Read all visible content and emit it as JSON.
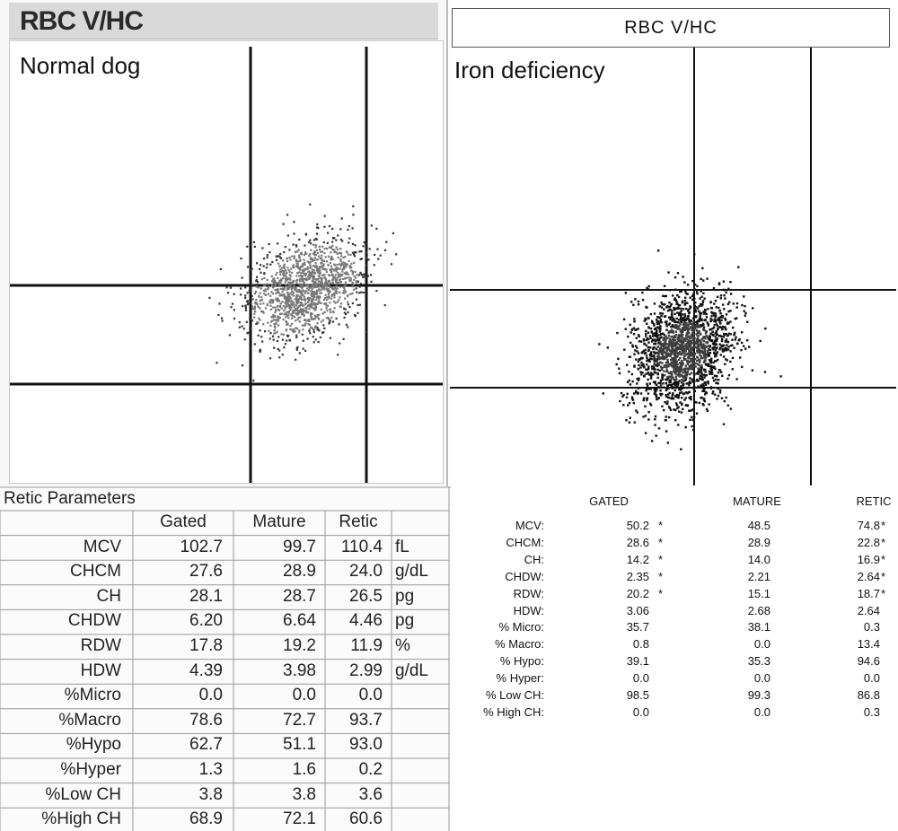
{
  "left": {
    "title": "RBC V/HC",
    "caption": "Normal dog"
  },
  "right": {
    "title": "RBC V/HC",
    "caption": "Iron deficiency"
  },
  "left_table": {
    "title": "Retic Parameters",
    "headers": [
      "Gated",
      "Mature",
      "Retic"
    ],
    "rows": [
      {
        "label": "MCV",
        "gated": "102.7",
        "mature": "99.7",
        "retic": "110.4",
        "unit": "fL"
      },
      {
        "label": "CHCM",
        "gated": "27.6",
        "mature": "28.9",
        "retic": "24.0",
        "unit": "g/dL"
      },
      {
        "label": "CH",
        "gated": "28.1",
        "mature": "28.7",
        "retic": "26.5",
        "unit": "pg"
      },
      {
        "label": "CHDW",
        "gated": "6.20",
        "mature": "6.64",
        "retic": "4.46",
        "unit": "pg"
      },
      {
        "label": "RDW",
        "gated": "17.8",
        "mature": "19.2",
        "retic": "11.9",
        "unit": "%"
      },
      {
        "label": "HDW",
        "gated": "4.39",
        "mature": "3.98",
        "retic": "2.99",
        "unit": "g/dL"
      },
      {
        "label": "%Micro",
        "gated": "0.0",
        "mature": "0.0",
        "retic": "0.0",
        "unit": ""
      },
      {
        "label": "%Macro",
        "gated": "78.6",
        "mature": "72.7",
        "retic": "93.7",
        "unit": ""
      },
      {
        "label": "%Hypo",
        "gated": "62.7",
        "mature": "51.1",
        "retic": "93.0",
        "unit": ""
      },
      {
        "label": "%Hyper",
        "gated": "1.3",
        "mature": "1.6",
        "retic": "0.2",
        "unit": ""
      },
      {
        "label": "%Low CH",
        "gated": "3.8",
        "mature": "3.8",
        "retic": "3.6",
        "unit": ""
      },
      {
        "label": "%High CH",
        "gated": "68.9",
        "mature": "72.1",
        "retic": "60.6",
        "unit": ""
      }
    ]
  },
  "right_table": {
    "headers": [
      "GATED",
      "MATURE",
      "RETIC"
    ],
    "rows": [
      {
        "label": "MCV:",
        "gated": "50.2",
        "gflag": "*",
        "mature": "48.5",
        "retic": "74.8",
        "rflag": "*"
      },
      {
        "label": "CHCM:",
        "gated": "28.6",
        "gflag": "*",
        "mature": "28.9",
        "retic": "22.8",
        "rflag": "*"
      },
      {
        "label": "CH:",
        "gated": "14.2",
        "gflag": "*",
        "mature": "14.0",
        "retic": "16.9",
        "rflag": "*"
      },
      {
        "label": "CHDW:",
        "gated": "2.35",
        "gflag": "*",
        "mature": "2.21",
        "retic": "2.64",
        "rflag": "*"
      },
      {
        "label": "RDW:",
        "gated": "20.2",
        "gflag": "*",
        "mature": "15.1",
        "retic": "18.7",
        "rflag": "*"
      },
      {
        "label": "HDW:",
        "gated": "3.06",
        "gflag": "",
        "mature": "2.68",
        "retic": "2.64",
        "rflag": ""
      },
      {
        "label": "% Micro:",
        "gated": "35.7",
        "gflag": "",
        "mature": "38.1",
        "retic": "0.3",
        "rflag": ""
      },
      {
        "label": "% Macro:",
        "gated": "0.8",
        "gflag": "",
        "mature": "0.0",
        "retic": "13.4",
        "rflag": ""
      },
      {
        "label": "% Hypo:",
        "gated": "39.1",
        "gflag": "",
        "mature": "35.3",
        "retic": "94.6",
        "rflag": ""
      },
      {
        "label": "% Hyper:",
        "gated": "0.0",
        "gflag": "",
        "mature": "0.0",
        "retic": "0.0",
        "rflag": ""
      },
      {
        "label": "% Low CH:",
        "gated": "98.5",
        "gflag": "",
        "mature": "99.3",
        "retic": "86.8",
        "rflag": ""
      },
      {
        "label": "% High CH:",
        "gated": "0.0",
        "gflag": "",
        "mature": "0.0",
        "retic": "0.3",
        "rflag": ""
      }
    ]
  },
  "chart_data": [
    {
      "type": "scatter",
      "title": "RBC V/HC",
      "annotation": "Normal dog",
      "grid": "quadrant gates",
      "point_color": "#777777",
      "outlier_color": "#333333",
      "cluster": {
        "cx": 0.68,
        "cy": 0.56,
        "sx": 0.075,
        "sy": 0.09,
        "n": 1400,
        "tilt": -0.55
      }
    },
    {
      "type": "scatter",
      "title": "RBC V/HC",
      "annotation": "Iron deficiency",
      "grid": "quadrant gates",
      "point_color": "#111111",
      "core_color": "#3d3d3d",
      "cluster": {
        "cx": 0.52,
        "cy": 0.69,
        "sx": 0.07,
        "sy": 0.1,
        "n": 1800,
        "tilt": -1.1
      }
    }
  ]
}
